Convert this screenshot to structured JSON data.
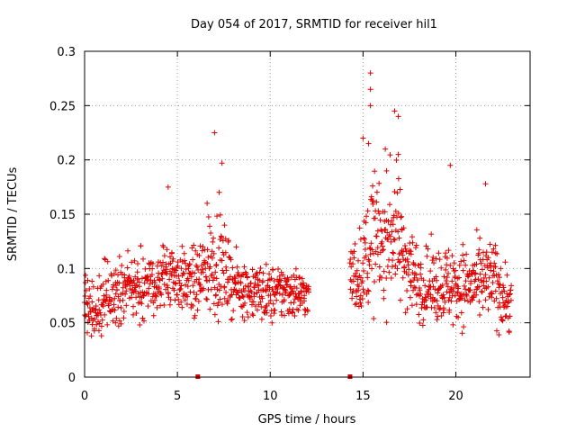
{
  "chart_data": {
    "type": "scatter",
    "title": "Day 054 of 2017, SRMTID for receiver hil1",
    "xlabel": "GPS time / hours",
    "ylabel": "SRMTID / TECUs",
    "xlim": [
      0,
      24
    ],
    "ylim": [
      0,
      0.3
    ],
    "xticks": [
      "0",
      "5",
      "10",
      "15",
      "20"
    ],
    "yticks": [
      "0",
      "0.05",
      "0.1",
      "0.15",
      "0.2",
      "0.25",
      "0.3"
    ],
    "grid": true,
    "legend": "none",
    "marker": "plus",
    "color": "#e00000",
    "series": [
      {
        "segments": [
          {
            "start": 0.0,
            "end": 12.1,
            "step": 0.033
          },
          {
            "start": 14.3,
            "end": 23.0,
            "step": 0.033
          }
        ],
        "envelope": [
          [
            0.0,
            0.06,
            0.025
          ],
          [
            0.5,
            0.06,
            0.02
          ],
          [
            1.0,
            0.07,
            0.025
          ],
          [
            2.0,
            0.08,
            0.02
          ],
          [
            3.0,
            0.085,
            0.025
          ],
          [
            4.0,
            0.085,
            0.02
          ],
          [
            4.5,
            0.1,
            0.03
          ],
          [
            5.0,
            0.09,
            0.02
          ],
          [
            6.0,
            0.085,
            0.025
          ],
          [
            7.0,
            0.11,
            0.04
          ],
          [
            7.5,
            0.1,
            0.03
          ],
          [
            8.0,
            0.085,
            0.02
          ],
          [
            9.0,
            0.08,
            0.02
          ],
          [
            10.0,
            0.075,
            0.02
          ],
          [
            11.0,
            0.08,
            0.02
          ],
          [
            12.0,
            0.075,
            0.015
          ],
          [
            14.3,
            0.09,
            0.025
          ],
          [
            15.0,
            0.1,
            0.03
          ],
          [
            15.5,
            0.13,
            0.05
          ],
          [
            16.0,
            0.12,
            0.04
          ],
          [
            16.7,
            0.14,
            0.05
          ],
          [
            17.0,
            0.12,
            0.04
          ],
          [
            18.0,
            0.085,
            0.025
          ],
          [
            19.0,
            0.085,
            0.025
          ],
          [
            20.0,
            0.085,
            0.03
          ],
          [
            21.0,
            0.085,
            0.025
          ],
          [
            22.0,
            0.09,
            0.03
          ],
          [
            23.0,
            0.065,
            0.02
          ]
        ],
        "peaks": [
          {
            "x": 7.0,
            "y": 0.225
          },
          {
            "x": 15.4,
            "y": 0.28
          },
          {
            "x": 15.4,
            "y": 0.265
          },
          {
            "x": 15.4,
            "y": 0.25
          },
          {
            "x": 16.7,
            "y": 0.245
          },
          {
            "x": 16.9,
            "y": 0.24
          },
          {
            "x": 15.0,
            "y": 0.22
          },
          {
            "x": 15.3,
            "y": 0.215
          },
          {
            "x": 7.4,
            "y": 0.197
          },
          {
            "x": 19.7,
            "y": 0.195
          },
          {
            "x": 21.6,
            "y": 0.178
          },
          {
            "x": 16.2,
            "y": 0.21
          },
          {
            "x": 16.9,
            "y": 0.205
          },
          {
            "x": 4.5,
            "y": 0.175
          },
          {
            "x": 6.6,
            "y": 0.16
          }
        ],
        "zero_markers": [
          6.1,
          14.3
        ]
      }
    ]
  }
}
